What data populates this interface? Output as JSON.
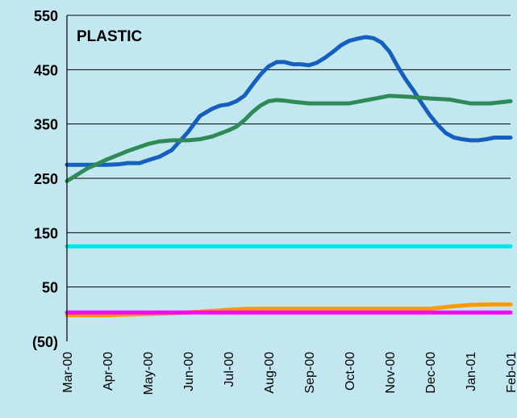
{
  "chart_data": {
    "type": "line",
    "title": "PLASTIC",
    "xlabel": "",
    "ylabel": "",
    "x_tick_labels": [
      "Mar-00",
      "Apr-00",
      "May-00",
      "Jun-00",
      "Jul-00",
      "Aug-00",
      "Sep-00",
      "Oct-00",
      "Nov-00",
      "Dec-00",
      "Jan-01",
      "Feb-01"
    ],
    "y_tick_labels": [
      "(50)",
      "50",
      "150",
      "250",
      "350",
      "450",
      "550"
    ],
    "y_ticks": [
      -50,
      50,
      150,
      250,
      350,
      450,
      550
    ],
    "ylim": [
      -50,
      550
    ],
    "xlim": [
      0,
      11
    ],
    "grid": "horizontal",
    "legend": "none",
    "series": [
      {
        "color": "#1560bd",
        "x": [
          0,
          0.5,
          1,
          1.3,
          1.5,
          1.8,
          2,
          2.3,
          2.6,
          3,
          3.3,
          3.6,
          3.8,
          4,
          4.2,
          4.4,
          4.6,
          4.8,
          5,
          5.2,
          5.4,
          5.6,
          5.8,
          6,
          6.2,
          6.4,
          6.6,
          6.8,
          7,
          7.2,
          7.4,
          7.6,
          7.8,
          8,
          8.2,
          8.4,
          8.6,
          8.8,
          9,
          9.2,
          9.4,
          9.6,
          9.8,
          10,
          10.2,
          10.4,
          10.6,
          10.8,
          11
        ],
        "y": [
          275,
          275,
          275,
          276,
          278,
          278,
          283,
          290,
          302,
          335,
          365,
          378,
          384,
          386,
          392,
          402,
          422,
          441,
          456,
          464,
          464,
          460,
          460,
          458,
          463,
          472,
          483,
          495,
          503,
          507,
          510,
          508,
          500,
          483,
          456,
          432,
          411,
          388,
          366,
          348,
          333,
          325,
          322,
          320,
          320,
          322,
          325,
          325,
          325
        ]
      },
      {
        "color": "#2e8b57",
        "x": [
          0,
          0.5,
          1,
          1.5,
          2,
          2.3,
          2.6,
          3,
          3.3,
          3.6,
          4,
          4.2,
          4.4,
          4.6,
          4.8,
          5,
          5.2,
          5.4,
          5.6,
          6,
          6.5,
          7,
          7.5,
          8,
          8.5,
          9,
          9.5,
          10,
          10.5,
          11
        ],
        "y": [
          245,
          268,
          285,
          300,
          313,
          318,
          320,
          320,
          322,
          327,
          338,
          345,
          357,
          372,
          384,
          392,
          394,
          393,
          391,
          388,
          388,
          388,
          395,
          402,
          400,
          397,
          395,
          388,
          388,
          392
        ]
      },
      {
        "color": "#00e5e5",
        "x": [
          0,
          11
        ],
        "y": [
          125,
          125
        ]
      },
      {
        "color": "#ff9900",
        "x": [
          0,
          1,
          2,
          3,
          4,
          4.5,
          5,
          6,
          7,
          8,
          8.5,
          9,
          9.5,
          10,
          10.5,
          11
        ],
        "y": [
          -2,
          -2,
          0,
          3,
          8,
          10,
          10,
          10,
          10,
          10,
          10,
          10,
          14,
          17,
          18,
          18
        ]
      },
      {
        "color": "#ff00ff",
        "x": [
          0,
          11
        ],
        "y": [
          3,
          3
        ]
      }
    ]
  }
}
